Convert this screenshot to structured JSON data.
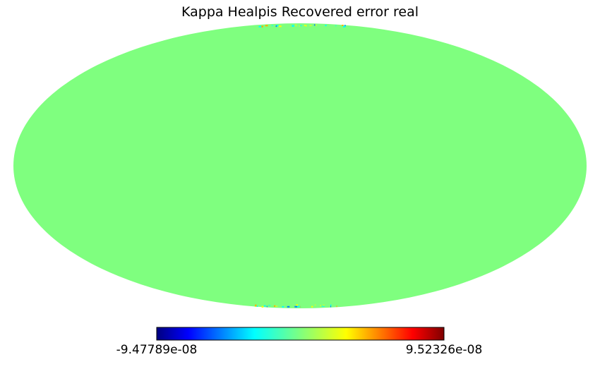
{
  "chart_data": {
    "type": "heatmap",
    "projection": "mollweide",
    "title": "Kappa Healpis Recovered error real",
    "colormap": "jet",
    "colorbar": {
      "orientation": "horizontal",
      "placement": "bottom",
      "min_label": "-9.47789e-08",
      "max_label": "9.52326e-08",
      "min": -9.47789e-08,
      "max": 9.52326e-08
    },
    "dominant_value": 0,
    "dominant_color": "#7fff7f",
    "pole_artifacts": true
  }
}
